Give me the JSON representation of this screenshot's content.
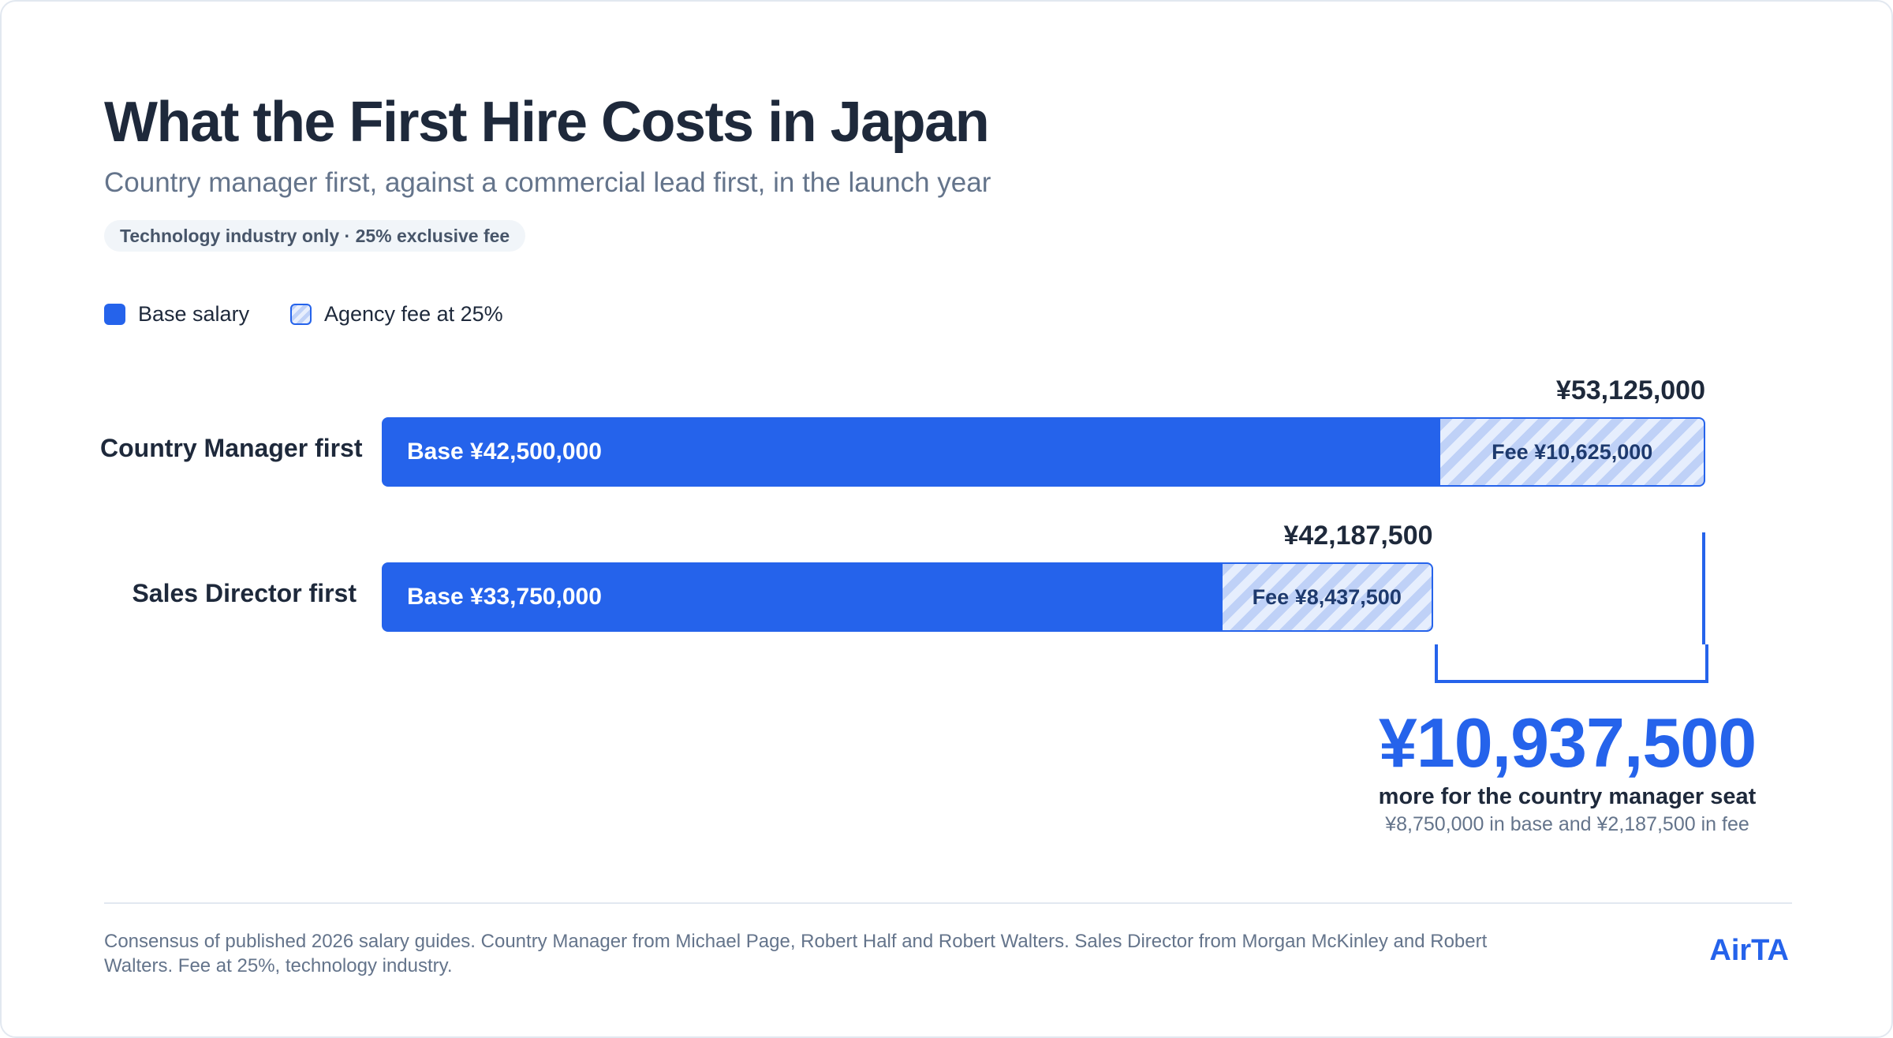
{
  "header": {
    "title": "What the First Hire Costs in Japan",
    "subtitle": "Country manager first, against a commercial lead first, in the launch year",
    "tag": "Technology industry only · 25% exclusive fee"
  },
  "legend": {
    "base_label": "Base salary",
    "fee_label": "Agency fee at 25%"
  },
  "colors": {
    "accent": "#2563eb",
    "text": "#1e293b",
    "muted": "#64748b"
  },
  "chart_data": {
    "type": "bar",
    "orientation": "horizontal",
    "stacked": true,
    "categories": [
      "Country Manager first",
      "Sales Director first"
    ],
    "series": [
      {
        "name": "Base salary",
        "values": [
          42500000,
          33750000
        ]
      },
      {
        "name": "Agency fee at 25%",
        "values": [
          10625000,
          8437500
        ]
      }
    ],
    "totals": [
      53125000,
      42187500
    ],
    "legend_position": "top-left",
    "grid": false,
    "axes_visible": false
  },
  "bars": [
    {
      "label": "Country Manager first",
      "base_text": "Base ¥42,500,000",
      "fee_text": "Fee ¥10,625,000",
      "total_text": "¥53,125,000"
    },
    {
      "label": "Sales Director first",
      "base_text": "Base ¥33,750,000",
      "fee_text": "Fee ¥8,437,500",
      "total_text": "¥42,187,500"
    }
  ],
  "difference": {
    "value": "¥10,937,500",
    "caption": "more for the country manager seat",
    "detail": "¥8,750,000 in base and ¥2,187,500 in fee"
  },
  "footer": {
    "note": "Consensus of published 2026 salary guides. Country Manager from Michael Page, Robert Half and Robert Walters. Sales Director from Morgan McKinley and Robert Walters. Fee at 25%, technology industry.",
    "brand": "AirTA"
  }
}
